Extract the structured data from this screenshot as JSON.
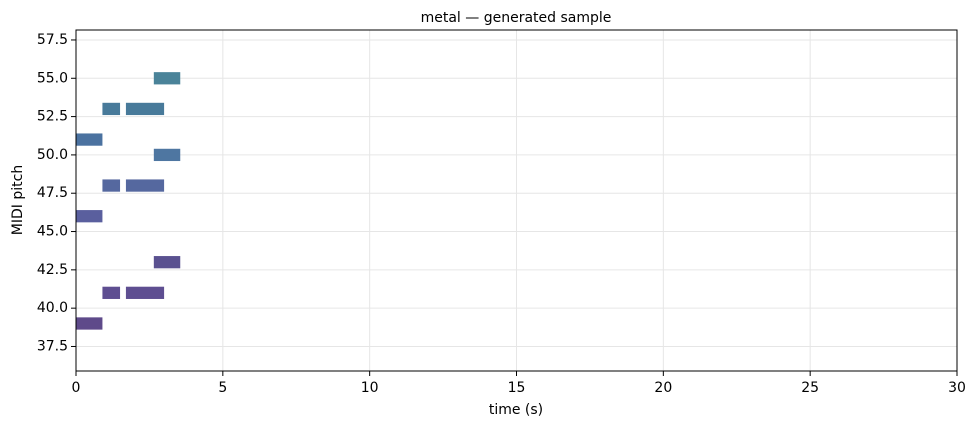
{
  "chart_data": {
    "type": "pianoroll",
    "title": "metal — generated sample",
    "x_label": "time (s)",
    "y_label": "MIDI pitch",
    "xlim": [
      0,
      30
    ],
    "xticks": [
      0,
      5,
      10,
      15,
      20,
      25,
      30
    ],
    "ylim": [
      35.9,
      58.15
    ],
    "yticks": [
      37.5,
      {
        "value": 40,
        "label": "40.0"
      },
      42.5,
      {
        "value": 45,
        "label": "45.0"
      },
      47.5,
      {
        "value": 50,
        "label": "50.0"
      },
      52.5,
      {
        "value": 55,
        "label": "55.0"
      },
      57.5
    ],
    "grid": true,
    "notes": [
      {
        "pitch": 39,
        "start": 0,
        "end": 0.9,
        "color": "#5e4a8a"
      },
      {
        "pitch": 41,
        "start": 0.9,
        "end": 1.5,
        "color": "#5e4e91"
      },
      {
        "pitch": 41,
        "start": 1.7,
        "end": 3.0,
        "color": "#5e4e91"
      },
      {
        "pitch": 43,
        "start": 2.65,
        "end": 3.55,
        "color": "#5a5190"
      },
      {
        "pitch": 46,
        "start": 0,
        "end": 0.9,
        "color": "#5a5f9e"
      },
      {
        "pitch": 48,
        "start": 0.9,
        "end": 1.5,
        "color": "#55689f"
      },
      {
        "pitch": 48,
        "start": 1.7,
        "end": 3.0,
        "color": "#55689f"
      },
      {
        "pitch": 50,
        "start": 2.65,
        "end": 3.55,
        "color": "#4e76a1"
      },
      {
        "pitch": 51,
        "start": 0,
        "end": 0.9,
        "color": "#4b72a0"
      },
      {
        "pitch": 53,
        "start": 0.9,
        "end": 1.5,
        "color": "#487a9a"
      },
      {
        "pitch": 53,
        "start": 1.7,
        "end": 3.0,
        "color": "#487a9a"
      },
      {
        "pitch": 55,
        "start": 2.65,
        "end": 3.55,
        "color": "#4a8399"
      }
    ]
  }
}
